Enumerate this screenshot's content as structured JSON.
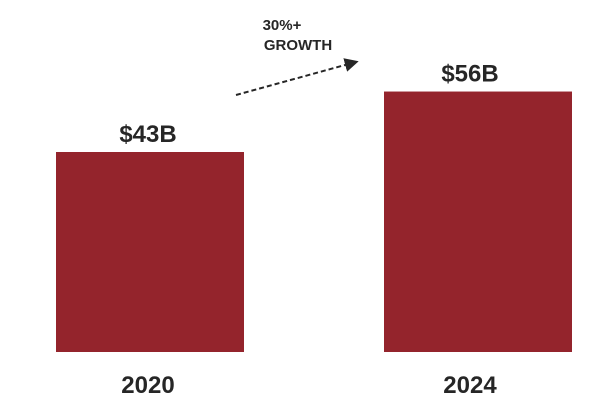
{
  "chart_data": {
    "type": "bar",
    "categories": [
      "2020",
      "2024"
    ],
    "values": [
      43,
      56
    ],
    "value_labels": [
      "$43B",
      "$56B"
    ],
    "unit": "$B",
    "title": "",
    "xlabel": "",
    "ylabel": "",
    "ylim": [
      0,
      60
    ],
    "grid": false,
    "legend": "none",
    "annotation": {
      "lines": [
        "30%+",
        "GROWTH"
      ],
      "arrow": "dashed, pointing up-right from 2020 toward 2024"
    },
    "colors": {
      "bar": "#94242C",
      "text": "#262626",
      "arrow": "#262626"
    }
  }
}
